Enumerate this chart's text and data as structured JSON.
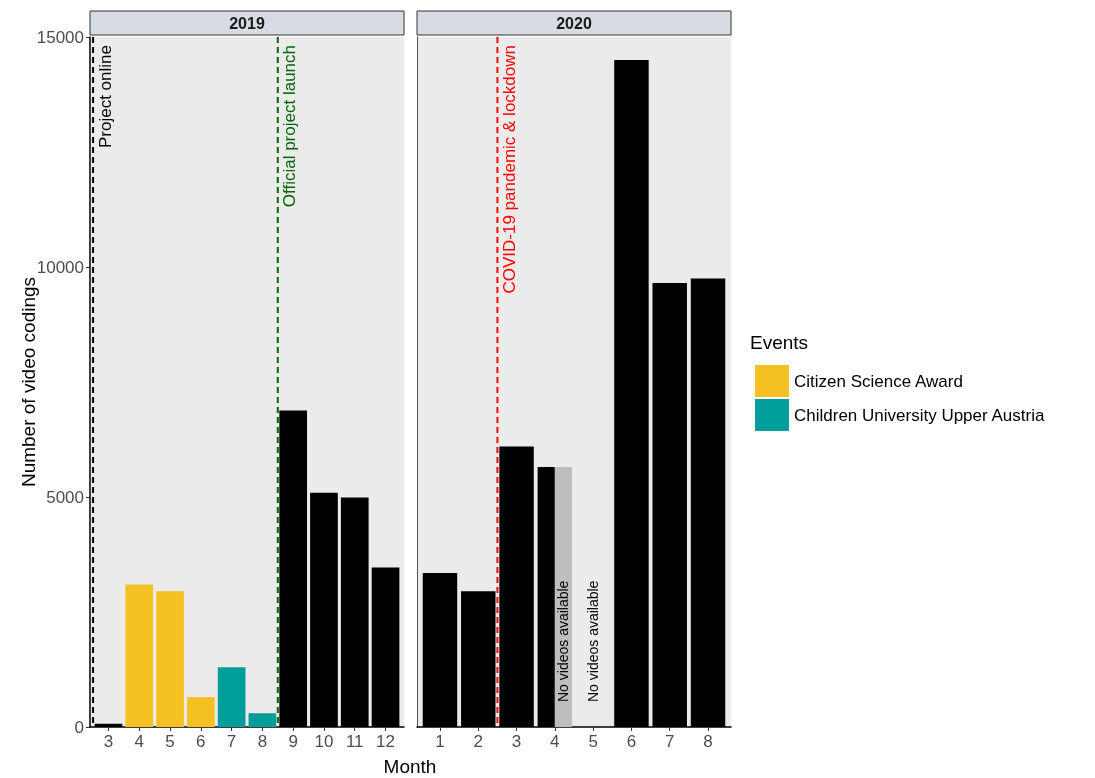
{
  "chart_data": [
    {
      "type": "bar",
      "title": "2019",
      "xlabel": "Month",
      "ylabel": "Number of video codings",
      "legend_title": "Events",
      "legend": "right",
      "grid": false,
      "xlim": [
        2.4,
        12.6
      ],
      "xticks": [
        3,
        4,
        5,
        6,
        7,
        8,
        9,
        10,
        11,
        12
      ],
      "ylim": [
        0,
        15000
      ],
      "yticks": [
        0,
        5000,
        10000,
        15000
      ],
      "series": [
        {
          "name": "Citizen Science Award",
          "color": "#f5c122",
          "x": [
            4,
            5,
            6
          ],
          "values": [
            3100,
            2950,
            650
          ]
        },
        {
          "name": "Children University Upper Austria",
          "color": "#009e9a",
          "x": [
            7,
            8
          ],
          "values": [
            1300,
            300
          ]
        },
        {
          "color": "#000000",
          "x": [
            3,
            9,
            10,
            11,
            12
          ],
          "values": [
            70,
            6880,
            5090,
            4990,
            3470
          ]
        }
      ],
      "ref_lines": [
        {
          "axis": "x",
          "value": 2.5,
          "label": "Project online",
          "color": "#000000",
          "line_style": "dashed"
        },
        {
          "axis": "x",
          "value": 8.5,
          "label": "Official project launch",
          "color": "#006400",
          "line_style": "dashed"
        }
      ]
    },
    {
      "type": "bar",
      "title": "2020",
      "grid": false,
      "tick_labels": "x",
      "xlim": [
        0.4,
        8.6
      ],
      "xticks": [
        1,
        2,
        3,
        4,
        5,
        6,
        7,
        8
      ],
      "ylim": [
        0,
        15000
      ],
      "yticks": [
        0,
        5000,
        10000,
        15000
      ],
      "series": [
        {
          "color": "#000000",
          "x": [
            1,
            2,
            3,
            4,
            5,
            6,
            7,
            8
          ],
          "values": [
            3350,
            2950,
            6100,
            5650,
            0,
            14500,
            9650,
            9750
          ]
        },
        {
          "color": "#bebebe",
          "x": [
            4
          ],
          "values": [
            5650
          ]
        }
      ],
      "ref_lines": [
        {
          "axis": "x",
          "value": 2.5,
          "label": "COVID‑19 pandemic & lockdown",
          "color": "#ff0000",
          "line_style": "dashed"
        }
      ],
      "annotations": [
        "No videos available",
        "No videos available"
      ]
    }
  ]
}
